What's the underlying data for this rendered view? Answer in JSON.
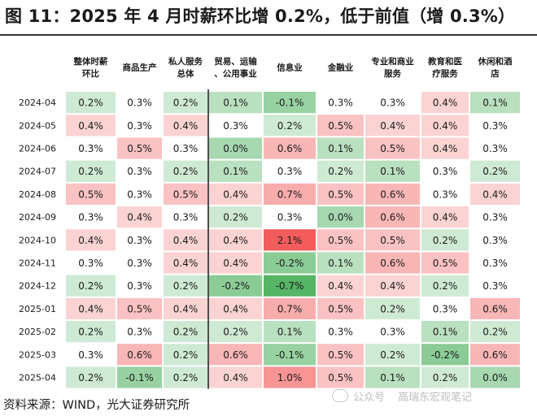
{
  "title": "图 11：2025 年 4 月时薪环比增 0.2%，低于前值（增 0.3%）",
  "source": "资料来源：WIND，光大证券研究所",
  "watermark": {
    "account": "公众号",
    "name": "高瑞东宏观笔记"
  },
  "colors": {
    "positive_max": "#f25c5c",
    "negative_max": "#55b465",
    "neutral": "#ffffff",
    "separator": "#222222"
  },
  "chart_data": {
    "type": "heatmap",
    "unit": "%",
    "columns": [
      [
        "整体时薪",
        "环比"
      ],
      [
        "商品生产"
      ],
      [
        "私人服务",
        "总体"
      ],
      [
        "贸易、运输",
        "、公用事业"
      ],
      [
        "信息业"
      ],
      [
        "金融业"
      ],
      [
        "专业和商业",
        "服务"
      ],
      [
        "教育和医",
        "疗服务"
      ],
      [
        "休闲和酒",
        "店"
      ]
    ],
    "rows": [
      "2024-04",
      "2024-05",
      "2024-06",
      "2024-07",
      "2024-08",
      "2024-09",
      "2024-10",
      "2024-11",
      "2024-12",
      "2025-01",
      "2025-02",
      "2025-03",
      "2025-04"
    ],
    "values": [
      [
        0.2,
        0.3,
        0.2,
        0.1,
        -0.1,
        0.3,
        0.3,
        0.4,
        0.1
      ],
      [
        0.4,
        0.3,
        0.4,
        0.3,
        0.2,
        0.5,
        0.4,
        0.4,
        0.3
      ],
      [
        0.3,
        0.5,
        0.3,
        0.0,
        0.6,
        0.1,
        0.5,
        0.4,
        0.3
      ],
      [
        0.2,
        0.3,
        0.2,
        0.1,
        0.3,
        0.2,
        0.1,
        0.3,
        0.2
      ],
      [
        0.5,
        0.3,
        0.5,
        0.4,
        0.7,
        0.5,
        0.6,
        0.3,
        0.4
      ],
      [
        0.3,
        0.4,
        0.3,
        0.2,
        0.3,
        0.0,
        0.6,
        0.4,
        0.3
      ],
      [
        0.4,
        0.3,
        0.4,
        0.4,
        2.1,
        0.5,
        0.5,
        0.2,
        0.3
      ],
      [
        0.3,
        0.3,
        0.4,
        0.4,
        -0.2,
        0.1,
        0.6,
        0.5,
        0.3
      ],
      [
        0.2,
        0.3,
        0.2,
        -0.2,
        -0.7,
        0.4,
        0.4,
        0.2,
        0.3
      ],
      [
        0.4,
        0.5,
        0.4,
        0.4,
        0.7,
        0.5,
        0.2,
        0.3,
        0.6
      ],
      [
        0.2,
        0.3,
        0.2,
        0.2,
        0.1,
        0.3,
        0.3,
        0.1,
        0.2
      ],
      [
        0.3,
        0.6,
        0.2,
        0.6,
        -0.1,
        0.5,
        0.2,
        -0.2,
        0.6
      ],
      [
        0.2,
        -0.1,
        0.2,
        0.4,
        1.0,
        0.5,
        0.1,
        0.2,
        0.0
      ]
    ],
    "decimals": 1,
    "separator_after_column": 2
  }
}
